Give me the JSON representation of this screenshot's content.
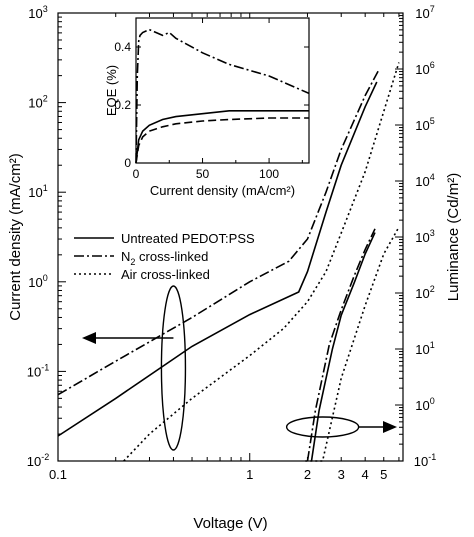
{
  "chart_data": {
    "type": "line",
    "main": {
      "xlabel": "Voltage (V)",
      "ylabel_left": "Current density (mA/cm²)",
      "ylabel_right": "Luminance (Cd/m²)",
      "x_scale": "log",
      "y_scale": "log",
      "xlim": [
        0.1,
        6.3
      ],
      "ylim_left": [
        0.01,
        1000
      ],
      "ylim_right": [
        0.1,
        10000000
      ],
      "x_ticks": [
        {
          "value": 0.1,
          "label": "0.1"
        },
        {
          "value": 1,
          "label": "1"
        },
        {
          "value": 2,
          "label": "2"
        },
        {
          "value": 3,
          "label": "3"
        },
        {
          "value": 4,
          "label": "4"
        },
        {
          "value": 5,
          "label": "5"
        }
      ],
      "left_ticks": [
        {
          "value": 0.01,
          "base": "10",
          "exp": "-2"
        },
        {
          "value": 0.1,
          "base": "10",
          "exp": "-1"
        },
        {
          "value": 1,
          "base": "10",
          "exp": "0"
        },
        {
          "value": 10,
          "base": "10",
          "exp": "1"
        },
        {
          "value": 100,
          "base": "10",
          "exp": "2"
        },
        {
          "value": 1000,
          "base": "10",
          "exp": "3"
        }
      ],
      "right_ticks": [
        {
          "value": 0.1,
          "base": "10",
          "exp": "-1"
        },
        {
          "value": 1,
          "base": "10",
          "exp": "0"
        },
        {
          "value": 10,
          "base": "10",
          "exp": "1"
        },
        {
          "value": 100,
          "base": "10",
          "exp": "2"
        },
        {
          "value": 1000,
          "base": "10",
          "exp": "3"
        },
        {
          "value": 10000,
          "base": "10",
          "exp": "4"
        },
        {
          "value": 100000,
          "base": "10",
          "exp": "5"
        },
        {
          "value": 1000000,
          "base": "10",
          "exp": "6"
        },
        {
          "value": 10000000,
          "base": "10",
          "exp": "7"
        }
      ],
      "legend": {
        "placement": "center-left",
        "entries": [
          {
            "label": "Untreated PEDOT:PSS",
            "dash": "solid"
          },
          {
            "label": "N",
            "sub": "2",
            "label_rest": " cross-linked",
            "dash": "dashdot"
          },
          {
            "label": "Air cross-linked",
            "dash": "dotted"
          }
        ]
      },
      "series": [
        {
          "axis": "left",
          "dash": "solid",
          "x": [
            0.1,
            0.2,
            0.5,
            1,
            1.8,
            2,
            2.5,
            3,
            4,
            4.6
          ],
          "y": [
            0.019,
            0.05,
            0.19,
            0.43,
            0.77,
            1.3,
            6,
            20,
            90,
            170
          ]
        },
        {
          "axis": "left",
          "dash": "dashdot",
          "x": [
            0.1,
            0.2,
            0.5,
            1,
            1.6,
            2,
            2.5,
            3,
            4,
            4.7
          ],
          "y": [
            0.055,
            0.13,
            0.4,
            1.0,
            1.7,
            3.0,
            10,
            30,
            120,
            230
          ]
        },
        {
          "axis": "left",
          "dash": "dotted",
          "x": [
            0.22,
            0.3,
            0.5,
            1,
            1.5,
            2,
            2.5,
            3,
            4,
            5,
            6
          ],
          "y": [
            0.01,
            0.02,
            0.05,
            0.15,
            0.3,
            0.6,
            1.3,
            3.5,
            17,
            80,
            280
          ]
        },
        {
          "axis": "right",
          "dash": "solid",
          "x": [
            2.1,
            2.3,
            2.7,
            3,
            3.5,
            4,
            4.5
          ],
          "y": [
            0.1,
            0.8,
            10,
            40,
            150,
            500,
            1200
          ]
        },
        {
          "axis": "right",
          "dash": "dashdot",
          "x": [
            2.0,
            2.2,
            2.6,
            3,
            3.5,
            4,
            4.5
          ],
          "y": [
            0.1,
            0.8,
            12,
            50,
            200,
            600,
            1400
          ]
        },
        {
          "axis": "right",
          "dash": "dotted",
          "x": [
            1.95,
            2.4,
            3,
            3.5,
            4,
            5,
            6
          ],
          "y": [
            0.1,
            0.1,
            3,
            15,
            60,
            500,
            1500
          ]
        }
      ],
      "annotations": [
        {
          "type": "ellipse_arrow",
          "direction": "left",
          "target_axis": "left",
          "at_voltage": 0.4
        },
        {
          "type": "ellipse_arrow",
          "direction": "right",
          "target_axis": "right",
          "at_voltage": 2.4
        }
      ]
    },
    "inset": {
      "xlabel": "Current density (mA/cm²)",
      "ylabel": "EQE (%)",
      "xlim": [
        0,
        130
      ],
      "ylim": [
        0,
        0.5
      ],
      "x_ticks": [
        "0",
        "50",
        "100"
      ],
      "y_ticks": [
        "0",
        "0.2",
        "0.4"
      ],
      "series": [
        {
          "dash": "solid",
          "x": [
            0,
            2,
            5,
            10,
            20,
            30,
            50,
            70,
            100,
            130
          ],
          "y": [
            0,
            0.08,
            0.11,
            0.13,
            0.15,
            0.16,
            0.17,
            0.18,
            0.18,
            0.18
          ]
        },
        {
          "dash": "longdash",
          "x": [
            0,
            2,
            5,
            10,
            20,
            30,
            50,
            70,
            100,
            130
          ],
          "y": [
            0,
            0.06,
            0.09,
            0.11,
            0.125,
            0.135,
            0.145,
            0.15,
            0.155,
            0.155
          ]
        },
        {
          "dash": "dashdot",
          "x": [
            0,
            1,
            2,
            3,
            5,
            10,
            15,
            20,
            25,
            30,
            50,
            70,
            100,
            130
          ],
          "y": [
            0,
            0.3,
            0.42,
            0.44,
            0.45,
            0.46,
            0.45,
            0.44,
            0.45,
            0.43,
            0.38,
            0.34,
            0.3,
            0.24
          ]
        }
      ]
    }
  }
}
